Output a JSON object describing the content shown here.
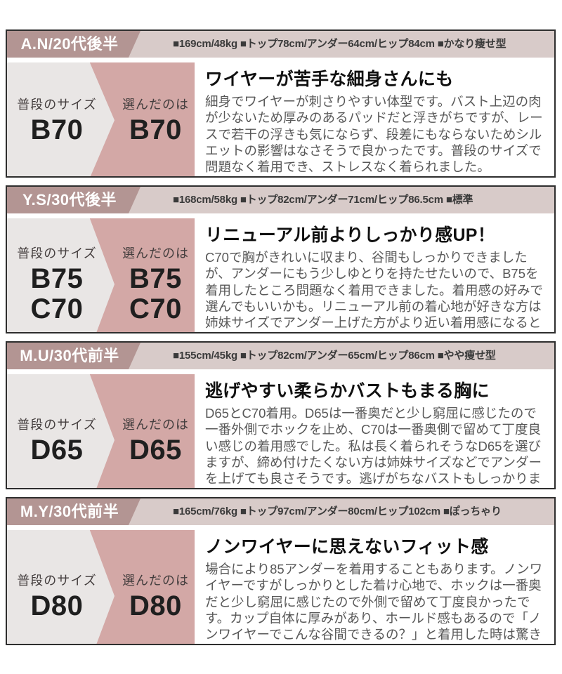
{
  "colors": {
    "header_left_bg": "#b39593",
    "header_right_bg": "#d8cbc9",
    "panel_pink": "#d3a8a6",
    "panel_gray": "#e9e6e5",
    "border": "#2e2e2e"
  },
  "panel_labels": {
    "usual": "普段のサイズ",
    "chosen": "選んだのは"
  },
  "sections": [
    {
      "name": "A.N/20代後半",
      "stats": "■169cm/48kg ■トップ78cm/アンダー64cm/ヒップ84cm ■かなり痩せ型",
      "usual_sizes": [
        "B70"
      ],
      "chosen_sizes": [
        "B70"
      ],
      "review_title": "ワイヤーが苦手な細身さんにも",
      "review_body": "細身でワイヤーが刺さりやすい体型です。バスト上辺の肉が少ないため厚みのあるパッドだと浮きがちですが、レースで若干の浮きも気にならず、段差にもならないためシルエットの影響はなさそうで良かったです。普段のサイズで問題なく着用でき、ストレスなく着られました。"
    },
    {
      "name": "Y.S/30代後半",
      "stats": "■168cm/58kg ■トップ82cm/アンダー71cm/ヒップ86.5cm ■標準",
      "usual_sizes": [
        "B75",
        "C70"
      ],
      "chosen_sizes": [
        "B75",
        "C70"
      ],
      "review_title": "リニューアル前よりしっかり感UP！",
      "review_body": "C70で胸がきれいに収まり、谷間もしっかりできましたが、アンダーにもう少しゆとりを持たせたいので、B75を着用したところ問題なく着用できました。着用感の好みで選んでもいいかも。リニューアル前の着心地が好きな方は姉妹サイズでアンダー上げた方がより近い着用感になると思います！"
    },
    {
      "name": "M.U/30代前半",
      "stats": "■155cm/45kg ■トップ82cm/アンダー65cm/ヒップ86cm ■やや痩せ型",
      "usual_sizes": [
        "D65"
      ],
      "chosen_sizes": [
        "D65"
      ],
      "review_title": "逃げやすい柔らかバストもまる胸に",
      "review_body": "D65とC70着用。D65は一番奥だと少し窮屈に感じたので一番外側でホックを止め、C70は一番奥側で留めて丁度良い感じの着用感でした。私は長く着られそうなD65を選びますが、締め付けたくない方は姉妹サイズなどでアンダーを上げても良さそうです。逃げがちなバストもしっかりまる胸に変えてくれました♡"
    },
    {
      "name": "M.Y/30代前半",
      "stats": "■165cm/76kg ■トップ97cm/アンダー80cm/ヒップ102cm ■ぽっちゃり",
      "usual_sizes": [
        "D80"
      ],
      "chosen_sizes": [
        "D80"
      ],
      "review_title": "ノンワイヤーに思えないフィット感",
      "review_body": "場合により85アンダーを着用することもあります。ノンワイヤーですがしっかりとした着け心地で、ホックは一番奥だと少し窮屈に感じたので外側で留めて丁度良かったです。カップ自体に厚みがあり、ホールド感もあるので「ノンワイヤーでこんな谷間できるの？」と着用した時は驚きました！"
    }
  ]
}
